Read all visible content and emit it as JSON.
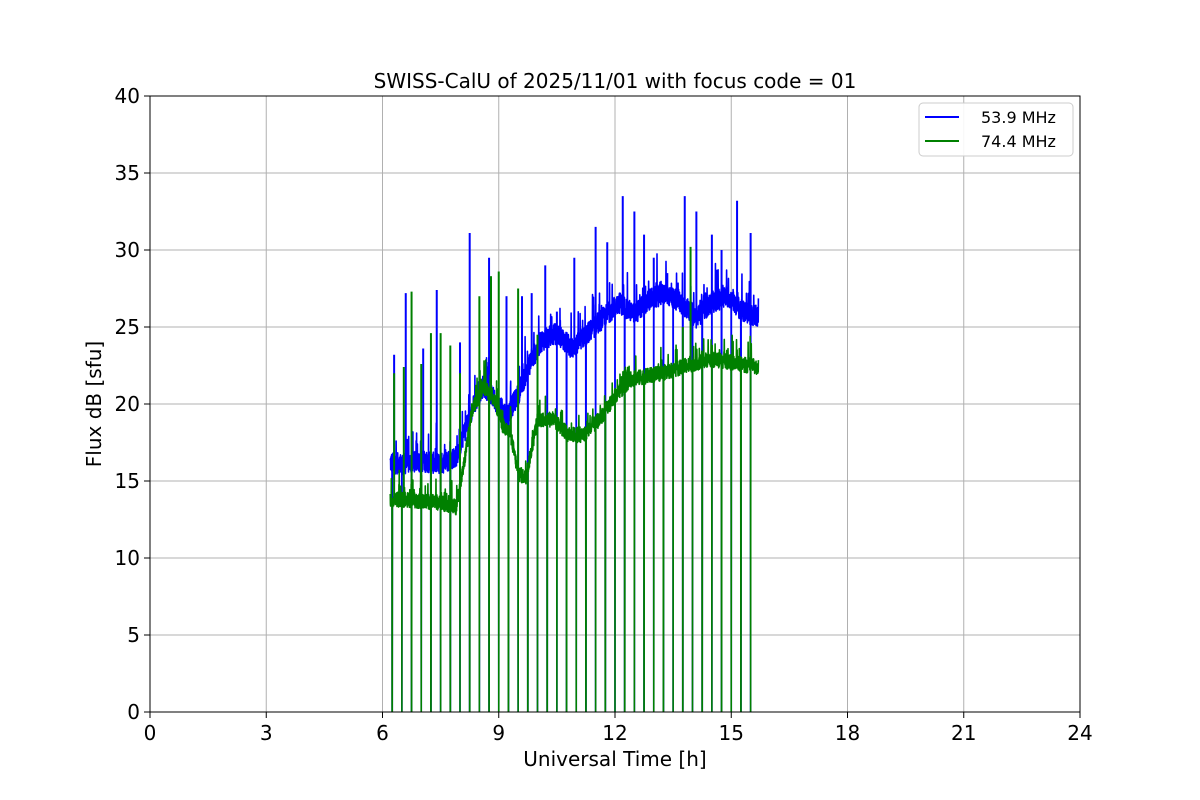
{
  "chart_data": {
    "type": "line",
    "title": "SWISS-CalU of 2025/11/01 with focus code = 01",
    "xlabel": "Universal Time [h]",
    "ylabel": "Flux dB [sfu]",
    "xlim": [
      0,
      24
    ],
    "ylim": [
      0,
      40
    ],
    "xticks": [
      0,
      3,
      6,
      9,
      12,
      15,
      18,
      21,
      24
    ],
    "yticks": [
      0,
      5,
      10,
      15,
      20,
      25,
      30,
      35,
      40
    ],
    "xtick_labels": [
      "0",
      "3",
      "6",
      "9",
      "12",
      "15",
      "18",
      "21",
      "24"
    ],
    "ytick_labels": [
      "0",
      "5",
      "10",
      "15",
      "20",
      "25",
      "30",
      "35",
      "40"
    ],
    "grid": true,
    "legend_position": "top-right",
    "calibration_dip_times_h": [
      6.25,
      6.5,
      6.75,
      7.0,
      7.25,
      7.5,
      7.75,
      8.0,
      8.25,
      8.5,
      8.75,
      9.0,
      9.25,
      9.5,
      9.75,
      10.0,
      10.25,
      10.5,
      10.75,
      11.0,
      11.25,
      11.5,
      11.75,
      12.0,
      12.25,
      12.5,
      12.75,
      13.0,
      13.25,
      13.5,
      13.75,
      14.0,
      14.25,
      14.5,
      14.75,
      15.0,
      15.25,
      15.5
    ],
    "series": [
      {
        "name": "53.9 MHz",
        "color": "#0000ff",
        "x": [
          6.2,
          6.5,
          7.0,
          7.5,
          7.9,
          8.1,
          8.3,
          8.6,
          8.9,
          9.2,
          9.5,
          9.8,
          10.1,
          10.5,
          10.9,
          11.3,
          11.7,
          12.1,
          12.5,
          12.9,
          13.3,
          13.7,
          14.1,
          14.5,
          14.9,
          15.3,
          15.7
        ],
        "values": [
          16.2,
          16.1,
          16.3,
          16.1,
          16.6,
          18.0,
          19.6,
          21.2,
          20.3,
          19.2,
          20.6,
          22.6,
          24.1,
          24.6,
          23.6,
          24.6,
          25.6,
          26.6,
          25.8,
          26.8,
          27.2,
          26.6,
          25.6,
          26.6,
          27.0,
          26.0,
          25.6
        ],
        "noise": 0.7,
        "spikes": [
          {
            "x": 6.3,
            "y": 23.2
          },
          {
            "x": 6.6,
            "y": 27.2
          },
          {
            "x": 7.05,
            "y": 23.6
          },
          {
            "x": 7.4,
            "y": 27.4
          },
          {
            "x": 8.0,
            "y": 24.0
          },
          {
            "x": 8.25,
            "y": 31.1
          },
          {
            "x": 8.75,
            "y": 29.5
          },
          {
            "x": 9.2,
            "y": 27.0
          },
          {
            "x": 9.6,
            "y": 27.0
          },
          {
            "x": 9.85,
            "y": 27.2
          },
          {
            "x": 10.2,
            "y": 29.0
          },
          {
            "x": 10.5,
            "y": 26.0
          },
          {
            "x": 10.95,
            "y": 29.5
          },
          {
            "x": 11.5,
            "y": 31.5
          },
          {
            "x": 11.8,
            "y": 30.5
          },
          {
            "x": 12.2,
            "y": 33.5
          },
          {
            "x": 12.5,
            "y": 32.5
          },
          {
            "x": 12.75,
            "y": 31.0
          },
          {
            "x": 13.0,
            "y": 29.5
          },
          {
            "x": 13.35,
            "y": 28.5
          },
          {
            "x": 13.8,
            "y": 33.5
          },
          {
            "x": 14.1,
            "y": 32.5
          },
          {
            "x": 14.5,
            "y": 31.0
          },
          {
            "x": 14.75,
            "y": 30.0
          },
          {
            "x": 15.15,
            "y": 33.2
          },
          {
            "x": 15.5,
            "y": 31.1
          }
        ]
      },
      {
        "name": "74.4 MHz",
        "color": "#008000",
        "x": [
          6.2,
          6.5,
          7.0,
          7.5,
          7.9,
          8.1,
          8.3,
          8.6,
          8.9,
          9.1,
          9.3,
          9.5,
          9.7,
          10.0,
          10.4,
          10.8,
          11.2,
          11.6,
          12.0,
          12.4,
          12.8,
          13.2,
          13.6,
          14.0,
          14.4,
          14.8,
          15.2,
          15.7
        ],
        "values": [
          13.8,
          13.8,
          13.7,
          13.6,
          13.3,
          16.0,
          19.5,
          21.2,
          20.2,
          18.6,
          18.1,
          15.5,
          15.2,
          19.0,
          19.0,
          18.0,
          18.0,
          19.0,
          20.5,
          21.6,
          21.8,
          22.0,
          22.3,
          22.6,
          22.9,
          22.8,
          22.6,
          22.4
        ],
        "noise": 0.5,
        "spikes": [
          {
            "x": 6.3,
            "y": 22.0
          },
          {
            "x": 6.55,
            "y": 22.4
          },
          {
            "x": 6.75,
            "y": 27.3
          },
          {
            "x": 7.0,
            "y": 22.6
          },
          {
            "x": 7.25,
            "y": 24.6
          },
          {
            "x": 7.5,
            "y": 24.6
          },
          {
            "x": 7.75,
            "y": 23.8
          },
          {
            "x": 8.0,
            "y": 22.0
          },
          {
            "x": 8.5,
            "y": 27.0
          },
          {
            "x": 8.8,
            "y": 28.3
          },
          {
            "x": 9.0,
            "y": 28.6
          },
          {
            "x": 9.5,
            "y": 27.5
          },
          {
            "x": 10.0,
            "y": 24.5
          },
          {
            "x": 13.75,
            "y": 25.0
          },
          {
            "x": 13.95,
            "y": 30.2
          }
        ]
      }
    ]
  }
}
